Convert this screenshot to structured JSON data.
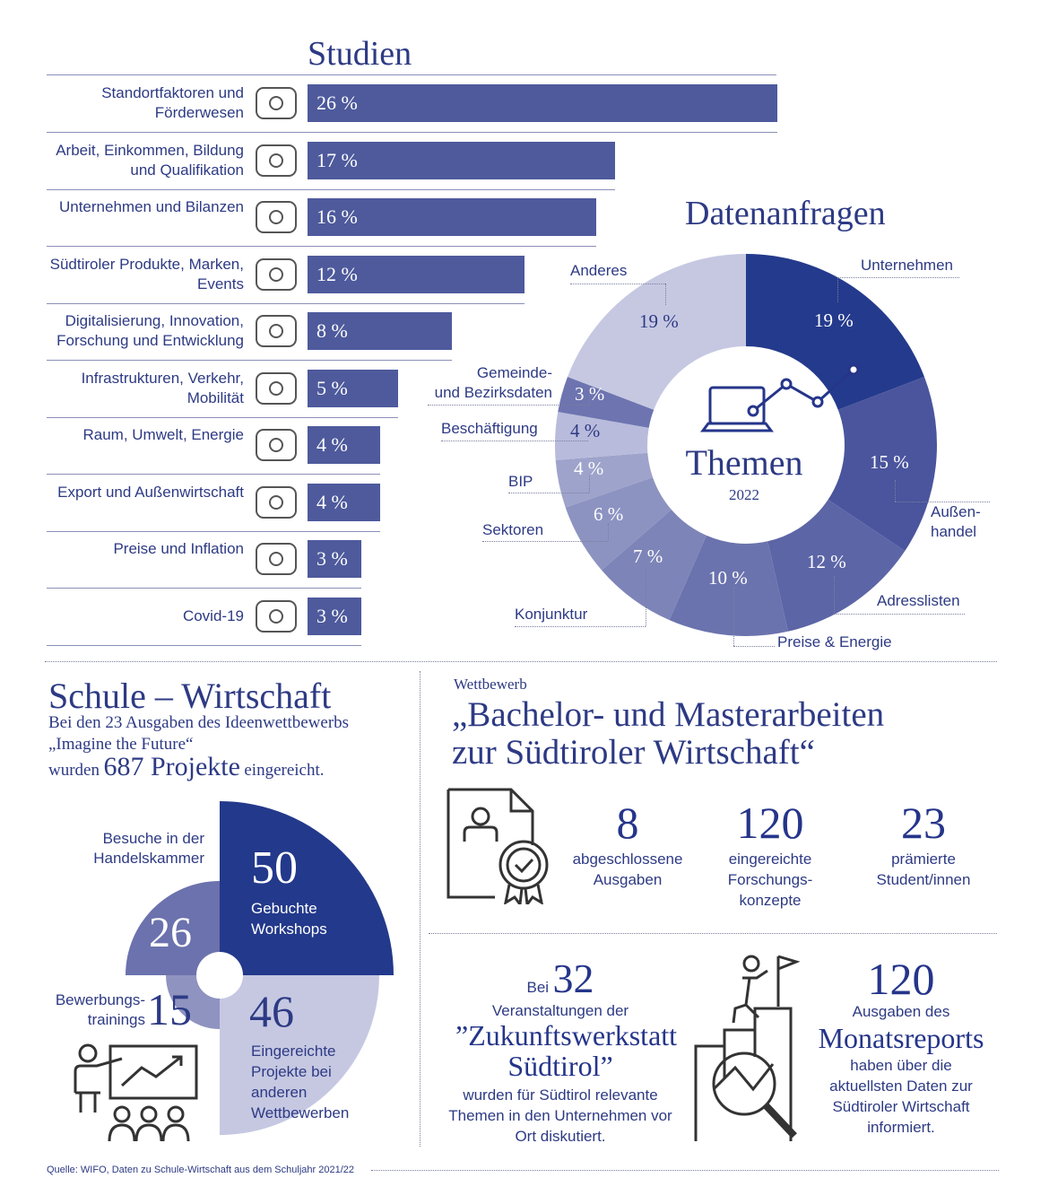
{
  "studien": {
    "title": "Studien",
    "items": [
      {
        "label": "Standortfaktoren und Förderwesen",
        "value": 26,
        "value_label": "26 %",
        "icon": "south-tyrol-map-icon"
      },
      {
        "label": "Arbeit, Einkommen, Bildung und Qualifikation",
        "value": 17,
        "value_label": "17 %",
        "icon": "org-chart-people-icon"
      },
      {
        "label": "Unternehmen und Bilanzen",
        "value": 16,
        "value_label": "16 %",
        "icon": "line-chart-icon"
      },
      {
        "label": "Südtiroler Produkte, Marken, Events",
        "value": 12,
        "value_label": "12 %",
        "icon": "apple-icon"
      },
      {
        "label": "Digitalisierung, Innovation, Forschung und Entwicklung",
        "value": 8,
        "value_label": "8 %",
        "icon": "microscope-icon"
      },
      {
        "label": "Infrastrukturen, Verkehr, Mobilität",
        "value": 5,
        "value_label": "5 %",
        "icon": "van-icon"
      },
      {
        "label": "Raum, Umwelt, Energie",
        "value": 4,
        "value_label": "4 %",
        "icon": "recycle-icon"
      },
      {
        "label": "Export und Außenwirtschaft",
        "value": 4,
        "value_label": "4 %",
        "icon": "globe-chart-icon"
      },
      {
        "label": "Preise und Inflation",
        "value": 3,
        "value_label": "3 %",
        "icon": "euro-hand-icon"
      },
      {
        "label": "Covid-19",
        "value": 3,
        "value_label": "3 %",
        "icon": "virus-icon"
      }
    ]
  },
  "datenanfragen": {
    "title": "Datenanfragen",
    "center_title": "Themen",
    "center_year": "2022",
    "segments": [
      {
        "label": "Unternehmen",
        "value": 19,
        "value_label": "19 %",
        "color": "#243a8c"
      },
      {
        "label": "Außen-\nhandel",
        "value": 15,
        "value_label": "15 %",
        "color": "#4a559d"
      },
      {
        "label": "Adresslisten",
        "value": 12,
        "value_label": "12 %",
        "color": "#5c65a6"
      },
      {
        "label": "Preise & Energie",
        "value": 10,
        "value_label": "10 %",
        "color": "#6b73ae"
      },
      {
        "label": "Konjunktur",
        "value": 7,
        "value_label": "7 %",
        "color": "#7d84b8"
      },
      {
        "label": "Sektoren",
        "value": 6,
        "value_label": "6 %",
        "color": "#8d93c1"
      },
      {
        "label": "BIP",
        "value": 4,
        "value_label": "4 %",
        "color": "#9ea3cb"
      },
      {
        "label": "Beschäftigung",
        "value": 4,
        "value_label": "4 %",
        "color": "#b8bbdb"
      },
      {
        "label": "Gemeinde-\nund Bezirksdaten",
        "value": 3,
        "value_label": "3 %",
        "color": "#6d74b0"
      },
      {
        "label": "Anderes",
        "value": 19,
        "value_label": "19 %",
        "color": "#c6c8e2"
      }
    ]
  },
  "chart_data": [
    {
      "type": "bar",
      "title": "Studien",
      "categories": [
        "Standortfaktoren und Förderwesen",
        "Arbeit, Einkommen, Bildung und Qualifikation",
        "Unternehmen und Bilanzen",
        "Südtiroler Produkte, Marken, Events",
        "Digitalisierung, Innovation, Forschung und Entwicklung",
        "Infrastrukturen, Verkehr, Mobilität",
        "Raum, Umwelt, Energie",
        "Export und Außenwirtschaft",
        "Preise und Inflation",
        "Covid-19"
      ],
      "values": [
        26,
        17,
        16,
        12,
        8,
        5,
        4,
        4,
        3,
        3
      ],
      "unit": "%"
    },
    {
      "type": "pie",
      "title": "Datenanfragen",
      "center_label": "Themen 2022",
      "categories": [
        "Unternehmen",
        "Außenhandel",
        "Adresslisten",
        "Preise & Energie",
        "Konjunktur",
        "Sektoren",
        "BIP",
        "Beschäftigung",
        "Gemeinde- und Bezirksdaten",
        "Anderes"
      ],
      "values": [
        19,
        15,
        12,
        10,
        7,
        6,
        4,
        4,
        3,
        19
      ],
      "unit": "%"
    },
    {
      "type": "pie",
      "title": "Schule – Wirtschaft",
      "categories": [
        "Gebuchte Workshops",
        "Besuche in der Handelskammer",
        "Bewerbungstrainings",
        "Eingereichte Projekte bei anderen Wettbewerben"
      ],
      "values": [
        50,
        26,
        15,
        46
      ]
    }
  ],
  "schule": {
    "title": "Schule – Wirtschaft",
    "line1": "Bei den 23 Ausgaben des Ideenwettbewerbs",
    "line2": "„Imagine the Future“",
    "line3_pre": "wurden",
    "line3_num": "687 Projekte",
    "line3_post": "eingereicht.",
    "workshops_num": "50",
    "workshops_label": "Gebuchte Workshops",
    "visits_label": "Besuche in der Handelskammer",
    "visits_num": "26",
    "trainings_label": "Bewerbungs-trainings",
    "trainings_num": "15",
    "projects_num": "46",
    "projects_label": "Eingereichte Projekte bei anderen Wettbewerben"
  },
  "wettbewerb": {
    "kicker": "Wettbewerb",
    "title_line1": "„Bachelor- und Masterarbeiten",
    "title_line2": "zur Südtiroler Wirtschaft“",
    "stats": [
      {
        "num": "8",
        "label": "abgeschlossene Ausgaben"
      },
      {
        "num": "120",
        "label": "eingereichte Forschungs-konzepte"
      },
      {
        "num": "23",
        "label": "prämierte Student/innen"
      }
    ]
  },
  "zukunft": {
    "pre": "Bei",
    "num": "32",
    "line1": "Veranstaltungen der",
    "title": "”Zukunftswerkstatt Südtirol”",
    "text": "wurden für Südtirol relevante Themen in den Unternehmen vor Ort diskutiert."
  },
  "monatsreport": {
    "num": "120",
    "line1": "Ausgaben des",
    "title": "Monatsreports",
    "text": "haben über die aktuellsten Daten zur Südtiroler Wirtschaft informiert."
  },
  "source": "Quelle: WIFO, Daten zu Schule-Wirtschaft aus dem Schuljahr 2021/22"
}
